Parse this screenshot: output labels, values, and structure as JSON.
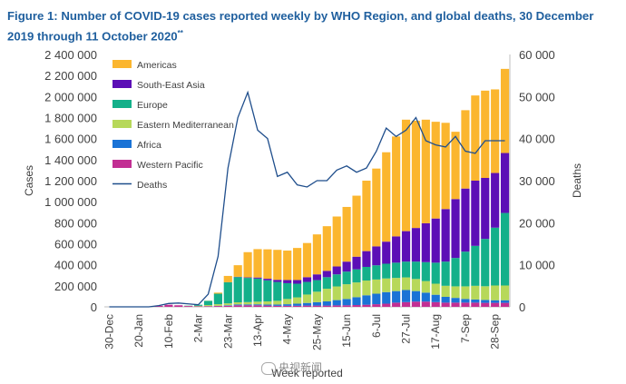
{
  "title": "Figure 1: Number of COVID-19 cases reported weekly by WHO Region, and global deaths, 30 December 2019 through 11 October 2020",
  "title_suffix": "**",
  "watermark": "央视新闻",
  "chart_data": {
    "type": "bar",
    "stacked": true,
    "title": "Figure 1: Number of COVID-19 cases reported weekly by WHO Region, and global deaths, 30 December 2019 through 11 October 2020**",
    "xlabel": "Week reported",
    "ylabel": "Cases",
    "y2label": "Deaths",
    "ylim": [
      0,
      2400000
    ],
    "y2lim": [
      0,
      60000
    ],
    "yticks": [
      "0",
      "200 000",
      "400 000",
      "600 000",
      "800 000",
      "1 000 000",
      "1 200 000",
      "1 400 000",
      "1 600 000",
      "1 800 000",
      "2 000 000",
      "2 200 000",
      "2 400 000"
    ],
    "y2ticks": [
      "0",
      "10 000",
      "20 000",
      "30 000",
      "40 000",
      "50 000",
      "60 000"
    ],
    "xtick_labels": [
      "30-Dec",
      "20-Jan",
      "10-Feb",
      "2-Mar",
      "23-Mar",
      "13-Apr",
      "4-May",
      "25-May",
      "15-Jun",
      "6-Jul",
      "27-Jul",
      "17-Aug",
      "7-Sep",
      "28-Sep"
    ],
    "grid": false,
    "legend_position": "top-left",
    "colors": {
      "Americas": "#fbb62f",
      "South-East Asia": "#5c0fb6",
      "Europe": "#14b08a",
      "Eastern Mediterranean": "#b7d85a",
      "Africa": "#1a73d6",
      "Western Pacific": "#c22f93",
      "Deaths": "#1f4e8c"
    },
    "categories": [
      "30-Dec",
      "6-Jan",
      "13-Jan",
      "20-Jan",
      "27-Jan",
      "3-Feb",
      "10-Feb",
      "17-Feb",
      "24-Feb",
      "2-Mar",
      "9-Mar",
      "16-Mar",
      "23-Mar",
      "30-Mar",
      "6-Apr",
      "13-Apr",
      "20-Apr",
      "27-Apr",
      "4-May",
      "11-May",
      "18-May",
      "25-May",
      "1-Jun",
      "8-Jun",
      "15-Jun",
      "22-Jun",
      "29-Jun",
      "6-Jul",
      "13-Jul",
      "20-Jul",
      "27-Jul",
      "3-Aug",
      "10-Aug",
      "17-Aug",
      "24-Aug",
      "31-Aug",
      "7-Sep",
      "14-Sep",
      "21-Sep",
      "28-Sep",
      "5-Oct"
    ],
    "series": [
      {
        "name": "Western Pacific",
        "values": [
          0,
          0,
          0,
          0,
          3000,
          10000,
          20000,
          15000,
          8000,
          5000,
          6000,
          8000,
          10000,
          15000,
          15000,
          15000,
          12000,
          10000,
          10000,
          10000,
          12000,
          12000,
          12000,
          14000,
          15000,
          17000,
          20000,
          25000,
          30000,
          40000,
          45000,
          50000,
          50000,
          45000,
          40000,
          40000,
          40000,
          40000,
          38000,
          38000,
          38000
        ]
      },
      {
        "name": "Africa",
        "values": [
          0,
          0,
          0,
          0,
          0,
          0,
          0,
          0,
          0,
          0,
          1000,
          2000,
          5000,
          8000,
          8000,
          9000,
          10000,
          12000,
          15000,
          20000,
          25000,
          32000,
          40000,
          50000,
          60000,
          75000,
          90000,
          100000,
          110000,
          110000,
          115000,
          100000,
          85000,
          70000,
          55000,
          45000,
          35000,
          30000,
          28000,
          25000,
          25000
        ]
      },
      {
        "name": "Eastern Mediterranean",
        "values": [
          0,
          0,
          0,
          0,
          0,
          0,
          0,
          0,
          2000,
          5000,
          10000,
          15000,
          18000,
          20000,
          22000,
          25000,
          30000,
          35000,
          50000,
          60000,
          80000,
          100000,
          120000,
          130000,
          140000,
          140000,
          140000,
          135000,
          130000,
          125000,
          120000,
          115000,
          110000,
          105000,
          105000,
          110000,
          120000,
          130000,
          130000,
          140000,
          140000
        ]
      },
      {
        "name": "Europe",
        "values": [
          0,
          0,
          0,
          0,
          0,
          0,
          0,
          0,
          2000,
          10000,
          40000,
          100000,
          200000,
          240000,
          230000,
          220000,
          200000,
          180000,
          150000,
          130000,
          120000,
          110000,
          110000,
          115000,
          120000,
          125000,
          130000,
          135000,
          140000,
          145000,
          150000,
          165000,
          180000,
          200000,
          230000,
          270000,
          330000,
          380000,
          450000,
          550000,
          690000
        ]
      },
      {
        "name": "South-East Asia",
        "values": [
          0,
          0,
          0,
          0,
          0,
          0,
          0,
          0,
          0,
          0,
          0,
          0,
          1000,
          3000,
          5000,
          10000,
          15000,
          20000,
          30000,
          35000,
          45000,
          55000,
          60000,
          75000,
          95000,
          120000,
          150000,
          180000,
          210000,
          250000,
          290000,
          320000,
          370000,
          420000,
          500000,
          560000,
          600000,
          620000,
          580000,
          520000,
          570000
        ]
      },
      {
        "name": "Americas",
        "values": [
          0,
          0,
          0,
          0,
          0,
          0,
          0,
          0,
          0,
          0,
          1000,
          10000,
          60000,
          110000,
          240000,
          270000,
          280000,
          285000,
          280000,
          305000,
          325000,
          380000,
          425000,
          475000,
          520000,
          580000,
          670000,
          740000,
          850000,
          950000,
          1060000,
          1020000,
          985000,
          920000,
          820000,
          640000,
          745000,
          810000,
          830000,
          795000,
          800000
        ]
      }
    ],
    "deaths": [
      0,
      0,
      0,
      0,
      0,
      300,
      800,
      900,
      700,
      500,
      3000,
      12000,
      33000,
      45000,
      51000,
      42000,
      40000,
      31000,
      32000,
      29000,
      28500,
      30000,
      30000,
      32500,
      33500,
      32000,
      33000,
      37000,
      42500,
      40500,
      42000,
      45000,
      39500,
      38500,
      38000,
      40500,
      37000,
      36500,
      39500,
      39500,
      39500
    ]
  }
}
